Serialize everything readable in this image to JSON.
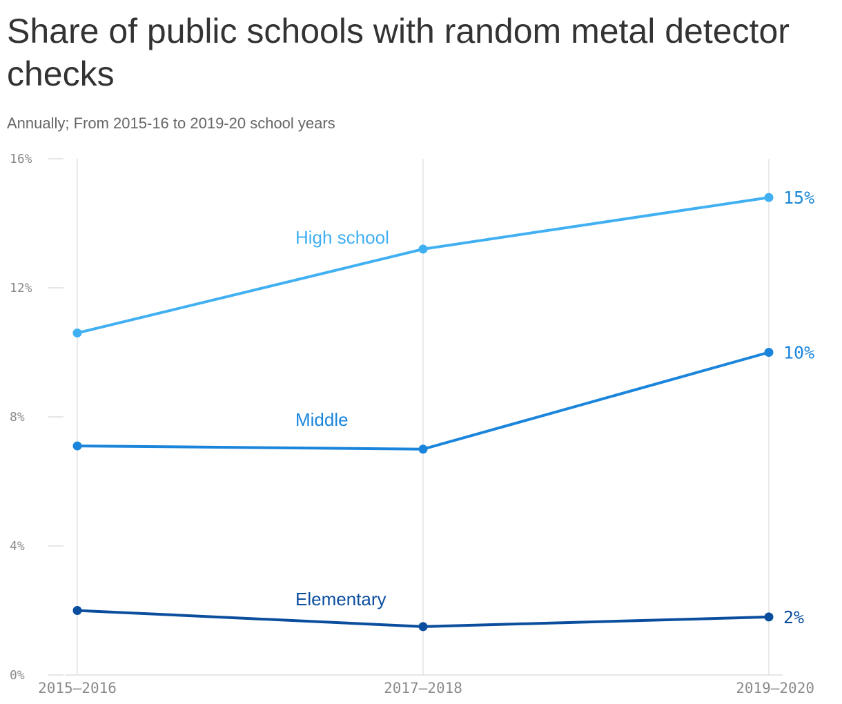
{
  "title": "Share of public schools with random metal detector checks",
  "subtitle": "Annually; From 2015-16 to 2019-20 school years",
  "chart_data": {
    "type": "line",
    "title": "Share of public schools with random metal detector checks",
    "subtitle": "Annually; From 2015-16 to 2019-20 school years",
    "categories": [
      "2015–2016",
      "2017–2018",
      "2019–2020"
    ],
    "y_ticks": [
      0,
      4,
      8,
      12,
      16
    ],
    "y_tick_labels": [
      "0%",
      "4%",
      "8%",
      "12%",
      "16%"
    ],
    "ylim": [
      0,
      16
    ],
    "grid": "vertical",
    "series": [
      {
        "name": "High school",
        "color": "#41b0f2",
        "values": [
          10.6,
          13.2,
          14.8
        ],
        "end_label": "15%",
        "end_label_color": "#1e88d6",
        "label_color": "#41b0f2"
      },
      {
        "name": "Middle",
        "color": "#1a85db",
        "values": [
          7.1,
          7.0,
          10.0
        ],
        "end_label": "10%",
        "end_label_color": "#1a85db",
        "label_color": "#1a85db"
      },
      {
        "name": "Elementary",
        "color": "#0b4e9e",
        "values": [
          2.0,
          1.5,
          1.8
        ],
        "end_label": "2%",
        "end_label_color": "#0b4e9e",
        "label_color": "#0b4e9e"
      }
    ]
  }
}
